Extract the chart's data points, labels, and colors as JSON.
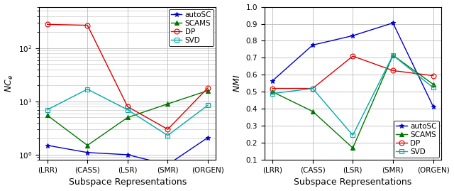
{
  "categories": [
    "(LRR)",
    "(CASS)",
    "(LSR)",
    "(SMR)",
    "(ORGEN)"
  ],
  "left_ylabel": "NC_e",
  "left_xlabel": "Subspace Representations",
  "left_series": {
    "autoSC": {
      "color": "#0000cc",
      "marker": "*",
      "values": [
        1.5,
        1.1,
        1.0,
        0.65,
        2.1
      ]
    },
    "SCAMS": {
      "color": "#007700",
      "marker": "^",
      "values": [
        5.5,
        1.5,
        5.0,
        9.0,
        16.0
      ]
    },
    "DP": {
      "color": "#dd0000",
      "marker": "o",
      "values": [
        280,
        270,
        8.0,
        3.0,
        18.0
      ]
    },
    "SVD": {
      "color": "#00aaaa",
      "marker": "s",
      "values": [
        7.0,
        17.0,
        7.0,
        2.3,
        8.5
      ]
    }
  },
  "right_ylabel": "NMI",
  "right_xlabel": "Subspace Representations",
  "right_ylim": [
    0.1,
    1.0
  ],
  "right_yticks": [
    0.1,
    0.2,
    0.3,
    0.4,
    0.5,
    0.6,
    0.7,
    0.8,
    0.9,
    1.0
  ],
  "right_series": {
    "autoSC": {
      "color": "#0000cc",
      "marker": "*",
      "values": [
        0.565,
        0.775,
        0.83,
        0.905,
        0.415
      ]
    },
    "SCAMS": {
      "color": "#007700",
      "marker": "^",
      "values": [
        0.5,
        0.385,
        0.17,
        0.715,
        0.545
      ]
    },
    "DP": {
      "color": "#dd0000",
      "marker": "o",
      "values": [
        0.52,
        0.52,
        0.71,
        0.625,
        0.595
      ]
    },
    "SVD": {
      "color": "#00aaaa",
      "marker": "s",
      "values": [
        0.49,
        0.52,
        0.245,
        0.715,
        0.525
      ]
    }
  },
  "legend_order": [
    "autoSC",
    "SCAMS",
    "DP",
    "SVD"
  ],
  "linewidth": 1.0,
  "markersize": 5,
  "grid_color": "#bbbbbb",
  "background_color": "#ffffff",
  "xlabel_fontsize": 9,
  "ylabel_fontsize": 9,
  "tick_fontsize": 7.5,
  "legend_fontsize": 7.5
}
